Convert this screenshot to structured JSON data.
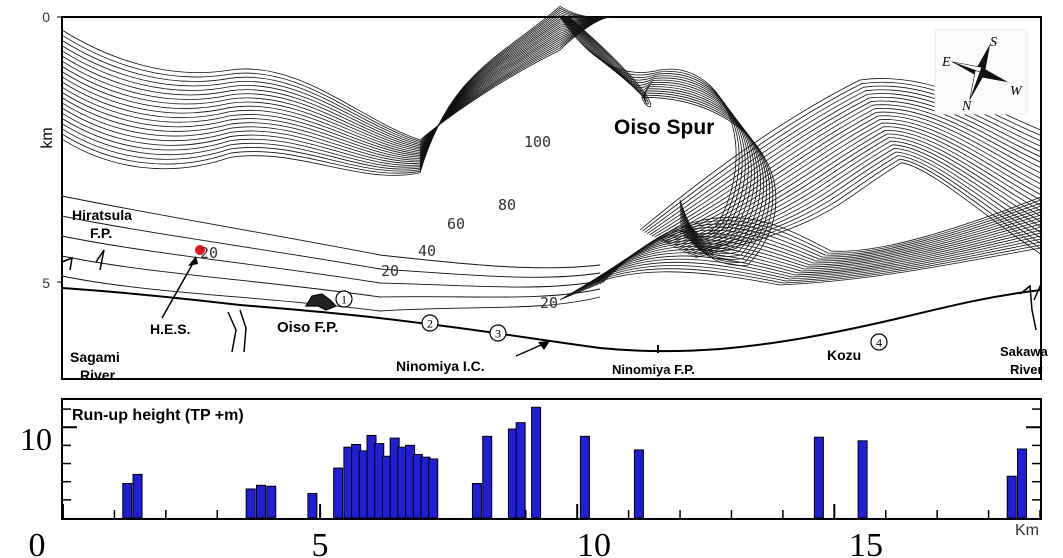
{
  "map": {
    "y_axis": {
      "unit": "km",
      "ticks": [
        "0",
        "5"
      ]
    },
    "places": {
      "oiso_spur": "Oiso Spur",
      "hiratsuka_fp_1": "Hiratsula",
      "hiratsuka_fp_2": "F.P.",
      "hes": "H.E.S.",
      "oiso_fp": "Oiso F.P.",
      "sagami_1": "Sagami",
      "sagami_2": "River",
      "ninomiya_ic": "Ninomiya I.C.",
      "ninomiya_fp": "Ninomiya F.P.",
      "kozu": "Kozu",
      "sakawa_1": "Sakawa",
      "sakawa_2": "River"
    },
    "contour_labels": [
      "100",
      "80",
      "60",
      "40",
      "20",
      "20",
      "20",
      "20"
    ],
    "markers": [
      "1",
      "2",
      "3",
      "4"
    ],
    "compass": [
      "S",
      "E",
      "W",
      "N"
    ],
    "colors": {
      "hes_point": "#e8141c"
    }
  },
  "chart_data": {
    "type": "bar",
    "title": "Run-up height (TP +m)",
    "xlabel": "Km",
    "xlim": [
      0,
      19
    ],
    "ylim": [
      0,
      13
    ],
    "x_ticks": [
      "0",
      "5",
      "10",
      "15"
    ],
    "y_ticks": [
      "10"
    ],
    "bar_color": "#1f1fd6",
    "bars": [
      {
        "x": 1.25,
        "y": 3.8
      },
      {
        "x": 1.45,
        "y": 4.8
      },
      {
        "x": 3.65,
        "y": 3.2
      },
      {
        "x": 3.85,
        "y": 3.6
      },
      {
        "x": 4.05,
        "y": 3.5
      },
      {
        "x": 4.85,
        "y": 2.7
      },
      {
        "x": 5.35,
        "y": 5.5
      },
      {
        "x": 5.55,
        "y": 7.8
      },
      {
        "x": 5.7,
        "y": 8.1
      },
      {
        "x": 5.85,
        "y": 7.4
      },
      {
        "x": 6.0,
        "y": 9.1
      },
      {
        "x": 6.15,
        "y": 8.2
      },
      {
        "x": 6.3,
        "y": 6.8
      },
      {
        "x": 6.45,
        "y": 8.8
      },
      {
        "x": 6.6,
        "y": 7.8
      },
      {
        "x": 6.75,
        "y": 8.0
      },
      {
        "x": 6.9,
        "y": 7.0
      },
      {
        "x": 7.05,
        "y": 6.7
      },
      {
        "x": 7.2,
        "y": 6.5
      },
      {
        "x": 8.05,
        "y": 3.8
      },
      {
        "x": 8.25,
        "y": 9.0
      },
      {
        "x": 8.75,
        "y": 9.8
      },
      {
        "x": 8.9,
        "y": 10.5
      },
      {
        "x": 9.2,
        "y": 12.2
      },
      {
        "x": 10.15,
        "y": 9.0
      },
      {
        "x": 11.2,
        "y": 7.5
      },
      {
        "x": 14.7,
        "y": 8.9
      },
      {
        "x": 15.55,
        "y": 8.5
      },
      {
        "x": 18.45,
        "y": 4.6
      },
      {
        "x": 18.65,
        "y": 7.6
      }
    ]
  }
}
